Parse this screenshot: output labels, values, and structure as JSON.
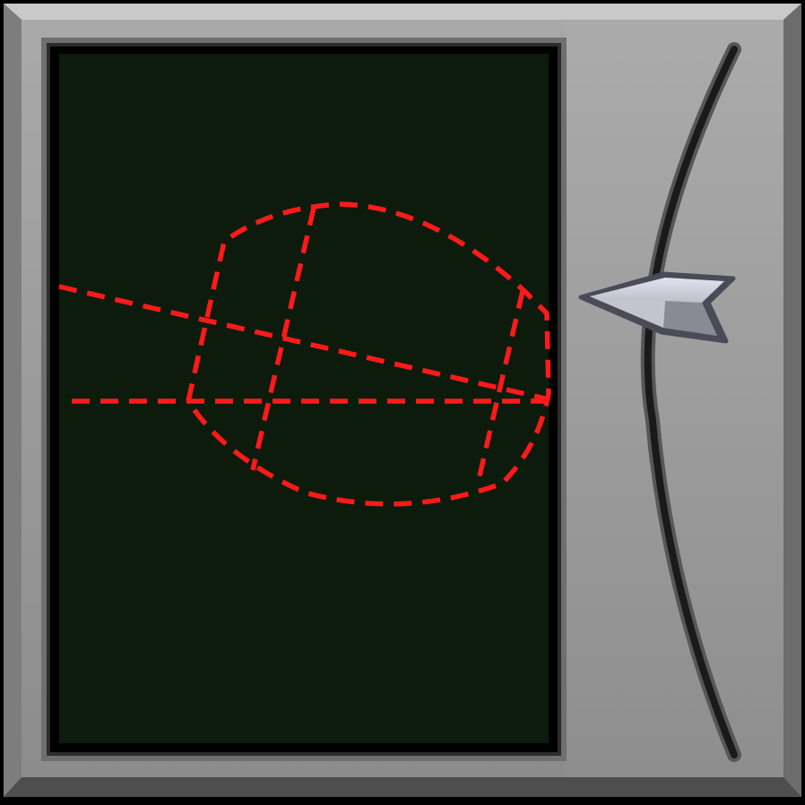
{
  "panel": {
    "frame_color": "#9a9a9a",
    "screen_color": "#0d1b0d",
    "scan_line_color": "#ff1a1a"
  },
  "slider": {
    "icon": "arrow-pointer-icon",
    "track_color": "#1a1a1a",
    "level": 0.33
  }
}
